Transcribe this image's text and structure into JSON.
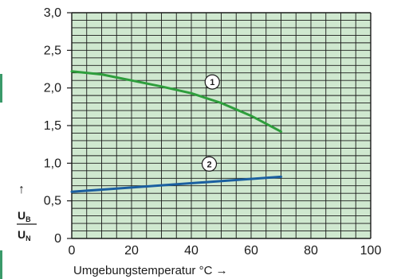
{
  "chart_data": {
    "type": "line",
    "xlabel": "Umgebungstemperatur °C →",
    "ylabel": {
      "arrow": "↑",
      "num_main": "U",
      "num_sub": "B",
      "den_main": "U",
      "den_sub": "N"
    },
    "xlim": [
      0,
      100
    ],
    "ylim": [
      0,
      3.0
    ],
    "xticks": [
      "0",
      "20",
      "40",
      "60",
      "80",
      "100"
    ],
    "yticks": [
      "0",
      "0,5",
      "1,0",
      "1,5",
      "2,0",
      "2,5",
      "3,0"
    ],
    "grid": true,
    "colors": {
      "plot_bg": "#cfe8cf",
      "grid": "#1a1a1a",
      "series1": "#2e9e3c",
      "series2": "#1a5fa0",
      "side_mark": "#3a9a6a"
    },
    "series": [
      {
        "label": "1",
        "x": [
          0,
          10,
          20,
          30,
          40,
          50,
          60,
          70
        ],
        "y": [
          2.22,
          2.18,
          2.1,
          2.02,
          1.93,
          1.8,
          1.63,
          1.42
        ],
        "label_at": [
          47,
          2.08
        ]
      },
      {
        "label": "2",
        "x": [
          0,
          70
        ],
        "y": [
          0.62,
          0.82
        ],
        "label_at": [
          46,
          0.99
        ]
      }
    ]
  }
}
